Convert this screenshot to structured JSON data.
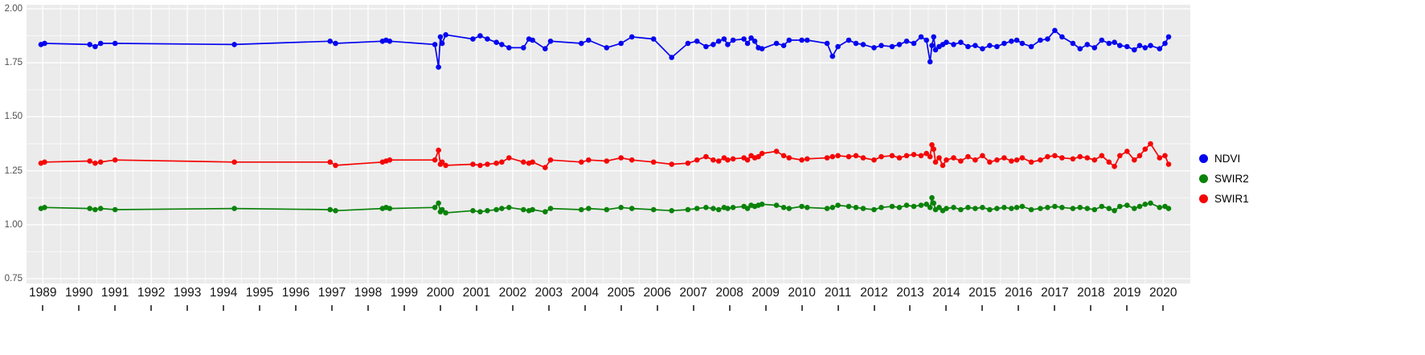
{
  "figure": {
    "panel_bg": "#EBEBEB",
    "grid_color": "#FFFFFF",
    "y_label_color": "#4D4D4D",
    "x_label_color": "#141414"
  },
  "legend": {
    "items": [
      {
        "label": "NDVI",
        "color": "#0505F0"
      },
      {
        "label": "SWIR2",
        "color": "#0A820A"
      },
      {
        "label": "SWIR1",
        "color": "#F50505"
      }
    ]
  },
  "chart_data": {
    "type": "line",
    "title": "",
    "xlabel": "",
    "ylabel": "",
    "grid": true,
    "legend_position": "right",
    "xlim": [
      1988.55,
      2020.75
    ],
    "ylim": [
      0.75,
      2.0
    ],
    "x_ticks": [
      1989,
      1990,
      1991,
      1992,
      1993,
      1994,
      1995,
      1996,
      1997,
      1998,
      1999,
      2000,
      2001,
      2002,
      2003,
      2004,
      2005,
      2006,
      2007,
      2008,
      2009,
      2010,
      2011,
      2012,
      2013,
      2014,
      2015,
      2016,
      2017,
      2018,
      2019,
      2020
    ],
    "y_ticks": [
      {
        "label": "2.00",
        "value": 2.0
      },
      {
        "label": "1.75",
        "value": 1.75
      },
      {
        "label": "1.50",
        "value": 1.5
      },
      {
        "label": "1.25",
        "value": 1.25
      },
      {
        "label": "1.00",
        "value": 1.0
      },
      {
        "label": "0.75",
        "value": 0.75
      }
    ],
    "x": [
      1988.95,
      1989.05,
      1990.3,
      1990.45,
      1990.6,
      1991.0,
      1994.3,
      1996.95,
      1997.1,
      1998.4,
      1998.5,
      1998.6,
      1999.85,
      1999.95,
      2000.0,
      2000.05,
      2000.15,
      2000.9,
      2001.1,
      2001.3,
      2001.55,
      2001.7,
      2001.9,
      2002.3,
      2002.45,
      2002.55,
      2002.9,
      2003.05,
      2003.9,
      2004.1,
      2004.6,
      2005.0,
      2005.3,
      2005.9,
      2006.4,
      2006.85,
      2007.1,
      2007.35,
      2007.55,
      2007.7,
      2007.85,
      2007.95,
      2008.1,
      2008.4,
      2008.5,
      2008.6,
      2008.7,
      2008.8,
      2008.9,
      2009.3,
      2009.5,
      2009.65,
      2010.0,
      2010.15,
      2010.7,
      2010.85,
      2011.0,
      2011.3,
      2011.5,
      2011.7,
      2012.0,
      2012.2,
      2012.5,
      2012.7,
      2012.9,
      2013.1,
      2013.3,
      2013.45,
      2013.55,
      2013.6,
      2013.65,
      2013.7,
      2013.8,
      2013.9,
      2014.0,
      2014.2,
      2014.4,
      2014.6,
      2014.8,
      2015.0,
      2015.2,
      2015.4,
      2015.6,
      2015.8,
      2015.95,
      2016.1,
      2016.35,
      2016.6,
      2016.8,
      2017.0,
      2017.2,
      2017.5,
      2017.7,
      2017.9,
      2018.1,
      2018.3,
      2018.5,
      2018.65,
      2018.8,
      2019.0,
      2019.2,
      2019.35,
      2019.5,
      2019.65,
      2019.9,
      2020.05,
      2020.15
    ],
    "series": [
      {
        "name": "NDVI",
        "color": "#0505F0",
        "values": [
          1.835,
          1.84,
          1.835,
          1.825,
          1.84,
          1.84,
          1.835,
          1.85,
          1.84,
          1.85,
          1.855,
          1.85,
          1.835,
          1.73,
          1.87,
          1.84,
          1.88,
          1.86,
          1.875,
          1.86,
          1.845,
          1.835,
          1.82,
          1.82,
          1.86,
          1.855,
          1.815,
          1.85,
          1.84,
          1.855,
          1.82,
          1.84,
          1.87,
          1.86,
          1.775,
          1.84,
          1.85,
          1.825,
          1.835,
          1.85,
          1.86,
          1.835,
          1.855,
          1.86,
          1.84,
          1.865,
          1.85,
          1.82,
          1.815,
          1.84,
          1.83,
          1.855,
          1.855,
          1.855,
          1.84,
          1.78,
          1.825,
          1.855,
          1.84,
          1.835,
          1.82,
          1.83,
          1.825,
          1.835,
          1.85,
          1.84,
          1.87,
          1.855,
          1.755,
          1.83,
          1.87,
          1.81,
          1.825,
          1.835,
          1.845,
          1.835,
          1.845,
          1.825,
          1.83,
          1.815,
          1.83,
          1.825,
          1.84,
          1.85,
          1.855,
          1.84,
          1.825,
          1.855,
          1.86,
          1.9,
          1.87,
          1.84,
          1.815,
          1.835,
          1.82,
          1.855,
          1.84,
          1.845,
          1.83,
          1.825,
          1.81,
          1.83,
          1.82,
          1.83,
          1.815,
          1.84,
          1.87
        ]
      },
      {
        "name": "SWIR2",
        "color": "#0A820A",
        "values": [
          1.075,
          1.08,
          1.075,
          1.07,
          1.075,
          1.07,
          1.075,
          1.07,
          1.065,
          1.075,
          1.08,
          1.075,
          1.08,
          1.1,
          1.06,
          1.07,
          1.055,
          1.065,
          1.06,
          1.065,
          1.07,
          1.075,
          1.08,
          1.07,
          1.065,
          1.07,
          1.06,
          1.075,
          1.07,
          1.075,
          1.07,
          1.08,
          1.075,
          1.07,
          1.065,
          1.07,
          1.075,
          1.08,
          1.075,
          1.07,
          1.08,
          1.075,
          1.08,
          1.085,
          1.075,
          1.09,
          1.085,
          1.09,
          1.095,
          1.09,
          1.08,
          1.075,
          1.085,
          1.08,
          1.075,
          1.08,
          1.09,
          1.085,
          1.08,
          1.075,
          1.07,
          1.08,
          1.085,
          1.08,
          1.09,
          1.085,
          1.09,
          1.095,
          1.08,
          1.125,
          1.1,
          1.07,
          1.08,
          1.065,
          1.075,
          1.08,
          1.07,
          1.08,
          1.075,
          1.08,
          1.07,
          1.075,
          1.08,
          1.075,
          1.08,
          1.085,
          1.07,
          1.075,
          1.08,
          1.085,
          1.08,
          1.075,
          1.08,
          1.075,
          1.07,
          1.085,
          1.075,
          1.065,
          1.085,
          1.09,
          1.075,
          1.085,
          1.095,
          1.1,
          1.08,
          1.085,
          1.075
        ]
      },
      {
        "name": "SWIR1",
        "color": "#F50505",
        "values": [
          1.285,
          1.29,
          1.295,
          1.285,
          1.29,
          1.3,
          1.29,
          1.29,
          1.275,
          1.29,
          1.295,
          1.3,
          1.3,
          1.345,
          1.28,
          1.29,
          1.275,
          1.28,
          1.275,
          1.28,
          1.285,
          1.29,
          1.31,
          1.29,
          1.285,
          1.29,
          1.265,
          1.3,
          1.29,
          1.3,
          1.295,
          1.31,
          1.3,
          1.29,
          1.28,
          1.285,
          1.3,
          1.315,
          1.3,
          1.295,
          1.31,
          1.3,
          1.305,
          1.31,
          1.3,
          1.32,
          1.31,
          1.315,
          1.33,
          1.34,
          1.32,
          1.31,
          1.3,
          1.305,
          1.31,
          1.315,
          1.32,
          1.315,
          1.32,
          1.31,
          1.3,
          1.315,
          1.32,
          1.31,
          1.32,
          1.325,
          1.32,
          1.33,
          1.315,
          1.37,
          1.35,
          1.29,
          1.31,
          1.275,
          1.3,
          1.31,
          1.295,
          1.315,
          1.3,
          1.32,
          1.29,
          1.3,
          1.31,
          1.295,
          1.3,
          1.31,
          1.29,
          1.3,
          1.315,
          1.32,
          1.31,
          1.305,
          1.315,
          1.31,
          1.3,
          1.32,
          1.29,
          1.27,
          1.32,
          1.34,
          1.3,
          1.32,
          1.35,
          1.375,
          1.31,
          1.32,
          1.28
        ]
      }
    ]
  }
}
